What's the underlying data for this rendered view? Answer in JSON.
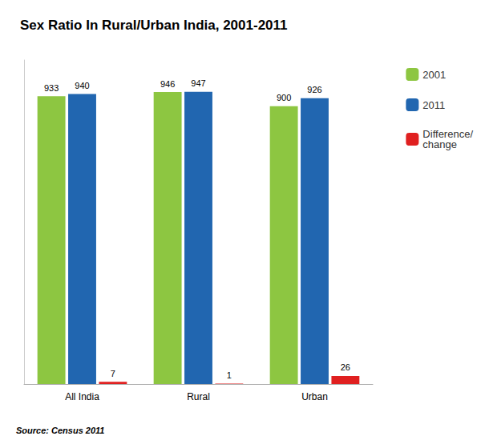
{
  "chart_data": {
    "type": "bar",
    "title": "Sex Ratio In Rural/Urban India, 2001-2011",
    "categories": [
      "All India",
      "Rural",
      "Urban"
    ],
    "series": [
      {
        "name": "2001",
        "color": "#8DC641",
        "values": [
          933,
          946,
          900
        ]
      },
      {
        "name": "2011",
        "color": "#2166B0",
        "values": [
          940,
          947,
          926
        ]
      },
      {
        "name": "Difference/\nchange",
        "color": "#E02020",
        "values": [
          7,
          1,
          26
        ]
      }
    ],
    "ylim": [
      0,
      1050
    ],
    "grid": false,
    "legend": "right",
    "data_labels": true,
    "tick_labels": "x",
    "annotations": [
      "Source: Census 2011"
    ]
  }
}
